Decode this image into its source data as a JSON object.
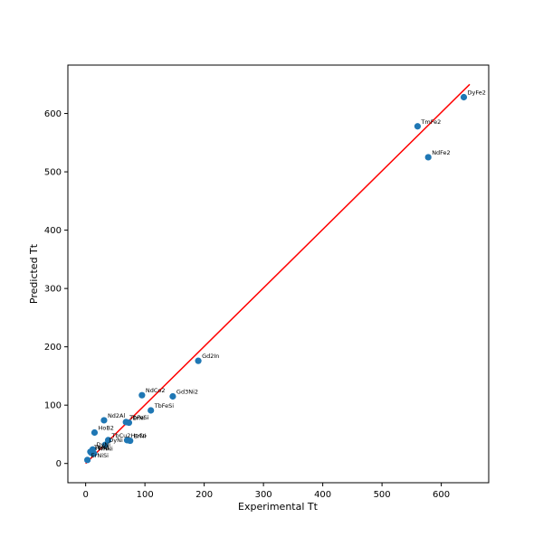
{
  "chart_data": {
    "type": "scatter",
    "title": "",
    "xlabel": "Experimental Tt",
    "ylabel": "Predicted Tt",
    "xlim": [
      -30,
      680
    ],
    "ylim": [
      -33,
      683
    ],
    "xticks": [
      0,
      100,
      200,
      300,
      400,
      500,
      600
    ],
    "yticks": [
      0,
      100,
      200,
      300,
      400,
      500,
      600
    ],
    "grid": false,
    "point_color": "#1f77b4",
    "line_color": "#ff0000",
    "fit_line": {
      "x": [
        0,
        648
      ],
      "y": [
        0,
        650
      ]
    },
    "points": [
      {
        "label": "DyFe2",
        "x": 638,
        "y": 628
      },
      {
        "label": "TmFe2",
        "x": 560,
        "y": 578
      },
      {
        "label": "NdFe2",
        "x": 578,
        "y": 525
      },
      {
        "label": "Gd2In",
        "x": 190,
        "y": 176
      },
      {
        "label": "NdCo2",
        "x": 95,
        "y": 117
      },
      {
        "label": "Gd3Ni2",
        "x": 147,
        "y": 115
      },
      {
        "label": "TbFeSi",
        "x": 110,
        "y": 91
      },
      {
        "label": "Nd2Al",
        "x": 31,
        "y": 74
      },
      {
        "label": "TbFeSi",
        "x": 68,
        "y": 71
      },
      {
        "label": "ErNi",
        "x": 73,
        "y": 70
      },
      {
        "label": "HoB2",
        "x": 15,
        "y": 53
      },
      {
        "label": "TbCu2",
        "x": 38,
        "y": 40
      },
      {
        "label": "HoCo",
        "x": 70,
        "y": 40
      },
      {
        "label": "ErNi",
        "x": 75,
        "y": 39
      },
      {
        "label": "DyNi",
        "x": 33,
        "y": 32
      },
      {
        "label": "DyNi",
        "x": 12,
        "y": 24
      },
      {
        "label": "TbNi",
        "x": 8,
        "y": 20
      },
      {
        "label": "HoNi",
        "x": 10,
        "y": 18
      },
      {
        "label": "TmNi",
        "x": 14,
        "y": 17
      },
      {
        "label": "ErNiSi",
        "x": 3,
        "y": 6
      }
    ]
  }
}
